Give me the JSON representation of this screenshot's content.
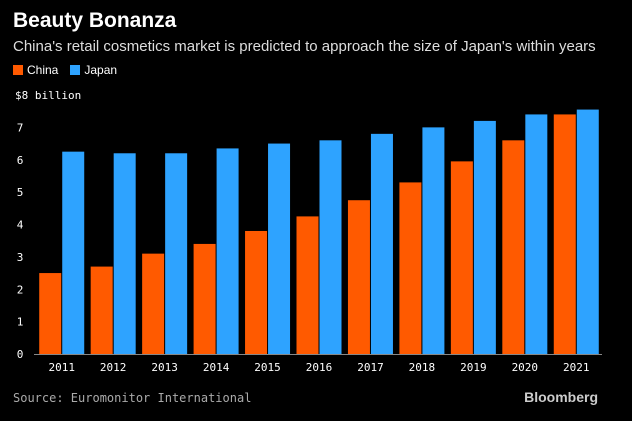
{
  "chart_data": {
    "type": "bar",
    "title": "Beauty Bonanza",
    "subtitle": "China's retail cosmetics market is predicted to approach the size of Japan's within years",
    "ylabel": "$8 billion",
    "categories": [
      "2011",
      "2012",
      "2013",
      "2014",
      "2015",
      "2016",
      "2017",
      "2018",
      "2019",
      "2020",
      "2021"
    ],
    "series": [
      {
        "name": "China",
        "color": "#ff5a00",
        "values": [
          2.5,
          2.7,
          3.1,
          3.4,
          3.8,
          4.25,
          4.75,
          5.3,
          5.95,
          6.6,
          7.4
        ]
      },
      {
        "name": "Japan",
        "color": "#2ea3ff",
        "values": [
          6.25,
          6.2,
          6.2,
          6.35,
          6.5,
          6.6,
          6.8,
          7.0,
          7.2,
          7.4,
          7.55
        ]
      }
    ],
    "yticks": [
      "0",
      "1",
      "2",
      "3",
      "4",
      "5",
      "6",
      "7"
    ],
    "ylim": [
      0,
      8
    ],
    "grid": false,
    "legend": "top-left"
  },
  "footer": {
    "source": "Source: Euromonitor International",
    "brand": "Bloomberg"
  }
}
